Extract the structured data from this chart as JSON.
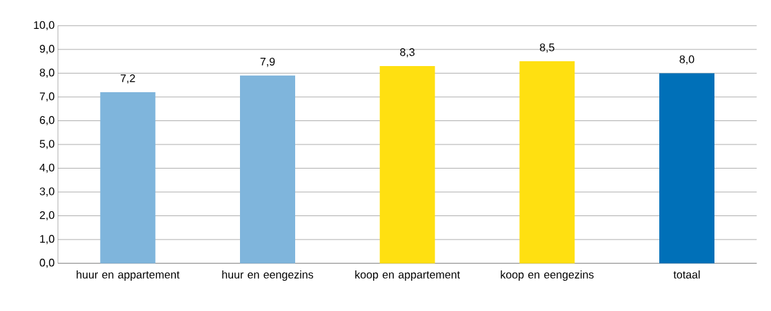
{
  "chart_data": {
    "type": "bar",
    "categories": [
      "huur en appartement",
      "huur en eengezins",
      "koop en appartement",
      "koop en eengezins",
      "totaal"
    ],
    "values": [
      7.2,
      7.9,
      8.3,
      8.5,
      8.0
    ],
    "value_labels": [
      "7,2",
      "7,9",
      "8,3",
      "8,5",
      "8,0"
    ],
    "colors": [
      "#7fb5dc",
      "#7fb5dc",
      "#ffe011",
      "#ffe011",
      "#0070b8"
    ],
    "ylim": [
      0,
      10
    ],
    "yticks": [
      {
        "value": 0,
        "label": "0,0"
      },
      {
        "value": 1,
        "label": "1,0"
      },
      {
        "value": 2,
        "label": "2,0"
      },
      {
        "value": 3,
        "label": "3,0"
      },
      {
        "value": 4,
        "label": "4,0"
      },
      {
        "value": 5,
        "label": "5,0"
      },
      {
        "value": 6,
        "label": "6,0"
      },
      {
        "value": 7,
        "label": "7,0"
      },
      {
        "value": 8,
        "label": "8,0"
      },
      {
        "value": 9,
        "label": "9,0"
      },
      {
        "value": 10,
        "label": "10,0"
      }
    ],
    "grid": "y"
  }
}
